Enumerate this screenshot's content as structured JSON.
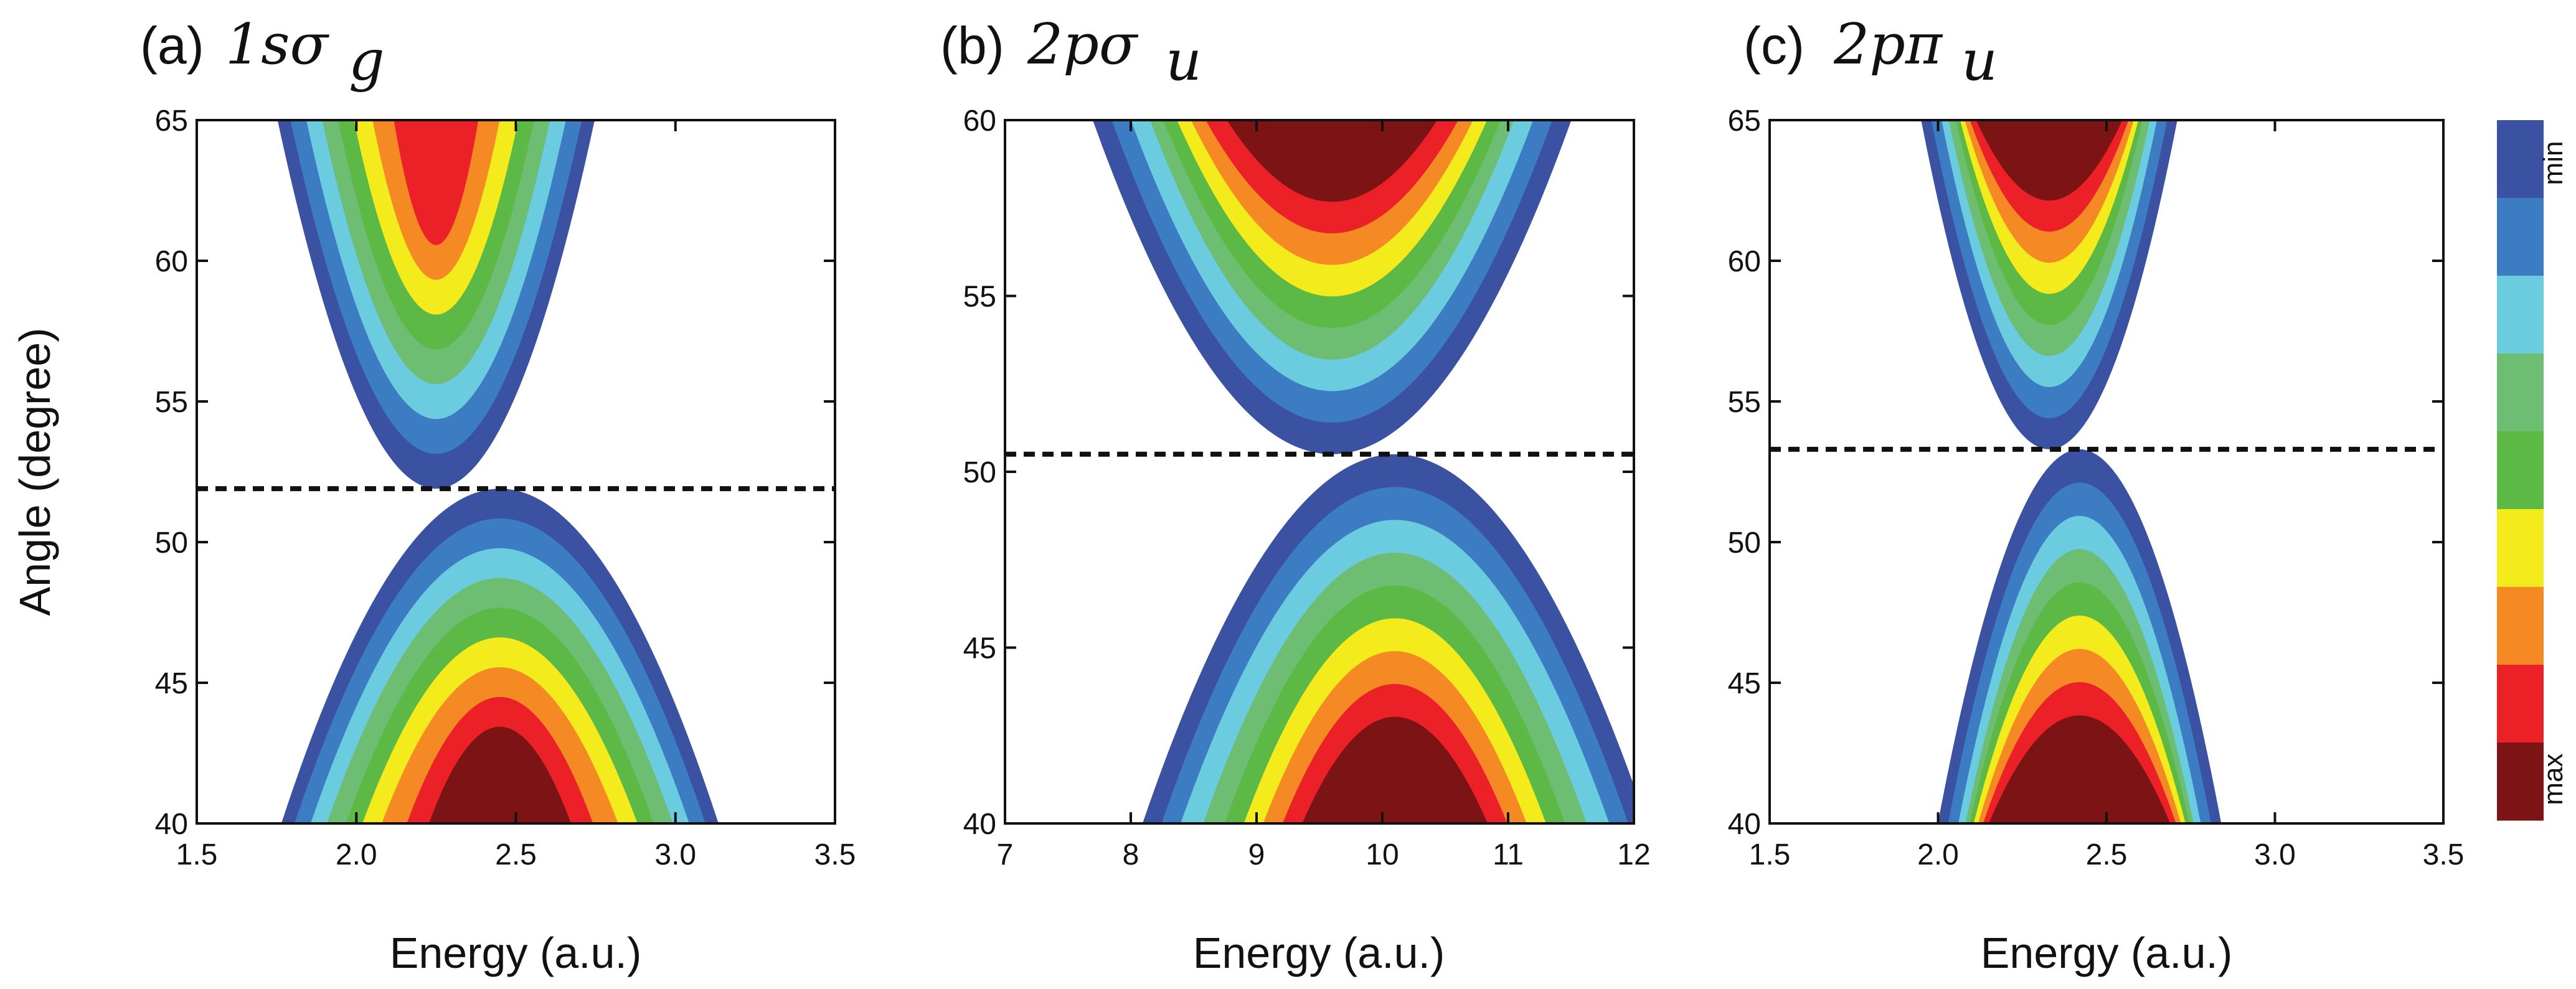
{
  "figure": {
    "colorbar": {
      "min_label": "min",
      "max_label": "max",
      "levels": [
        "#3B52A3",
        "#3C7CC3",
        "#6BCBDF",
        "#6DBE72",
        "#5DB946",
        "#F4EB1C",
        "#F58A25",
        "#EC2127",
        "#7C1416"
      ]
    }
  },
  "chart_data": [
    {
      "type": "heatmap",
      "panel_letter": "(a)",
      "orbital": "1sσ",
      "orbital_sub": "g",
      "xlabel": "Energy (a.u.)",
      "ylabel": "Angle (degree)",
      "xlim": [
        1.5,
        3.5
      ],
      "ylim": [
        40,
        65
      ],
      "xticks": [
        1.5,
        2.0,
        2.5,
        3.0,
        3.5
      ],
      "xtick_labels": [
        "1.5",
        "2.0",
        "2.5",
        "3.0",
        "3.5"
      ],
      "yticks": [
        40,
        45,
        50,
        55,
        60,
        65
      ],
      "ytick_labels": [
        "40",
        "45",
        "50",
        "55",
        "60",
        "65"
      ],
      "dashed_line_angle": 51.9,
      "upper_lobe": {
        "center_energy": 2.25,
        "widths": [
          0.52,
          0.48,
          0.43,
          0.38,
          0.33,
          0.28,
          0.22,
          0.15,
          0.0
        ]
      },
      "lower_lobe": {
        "center_energy": 2.45,
        "widths": [
          0.72,
          0.68,
          0.63,
          0.58,
          0.52,
          0.47,
          0.41,
          0.33,
          0.26
        ]
      }
    },
    {
      "type": "heatmap",
      "panel_letter": "(b)",
      "orbital": "2pσ",
      "orbital_sub": "u",
      "xlabel": "Energy (a.u.)",
      "ylabel": "",
      "xlim": [
        7,
        12
      ],
      "ylim": [
        40,
        60
      ],
      "xticks": [
        7,
        8,
        9,
        10,
        11,
        12
      ],
      "xtick_labels": [
        "7",
        "8",
        "9",
        "10",
        "11",
        "12"
      ],
      "yticks": [
        40,
        45,
        50,
        55,
        60
      ],
      "ytick_labels": [
        "40",
        "45",
        "50",
        "55",
        "60"
      ],
      "dashed_line_angle": 50.5,
      "upper_lobe": {
        "center_energy": 9.6,
        "widths": [
          2.0,
          1.85,
          1.7,
          1.55,
          1.45,
          1.35,
          1.25,
          1.15,
          1.0
        ]
      },
      "lower_lobe": {
        "center_energy": 10.1,
        "widths": [
          2.1,
          1.95,
          1.8,
          1.62,
          1.45,
          1.3,
          1.15,
          1.0,
          0.85
        ]
      }
    },
    {
      "type": "heatmap",
      "panel_letter": "(c)",
      "orbital": "2pπ",
      "orbital_sub": "u",
      "xlabel": "Energy (a.u.)",
      "ylabel": "",
      "xlim": [
        1.5,
        3.5
      ],
      "ylim": [
        40,
        65
      ],
      "xticks": [
        1.5,
        2.0,
        2.5,
        3.0,
        3.5
      ],
      "xtick_labels": [
        "1.5",
        "2.0",
        "2.5",
        "3.0",
        "3.5"
      ],
      "yticks": [
        40,
        45,
        50,
        55,
        60,
        65
      ],
      "ytick_labels": [
        "40",
        "45",
        "50",
        "55",
        "60",
        "65"
      ],
      "dashed_line_angle": 53.3,
      "upper_lobe": {
        "center_energy": 2.33,
        "widths": [
          0.4,
          0.37,
          0.34,
          0.32,
          0.3,
          0.29,
          0.28,
          0.27,
          0.26
        ]
      },
      "lower_lobe": {
        "center_energy": 2.42,
        "widths": [
          0.44,
          0.41,
          0.38,
          0.36,
          0.35,
          0.34,
          0.33,
          0.32,
          0.31
        ]
      }
    }
  ]
}
